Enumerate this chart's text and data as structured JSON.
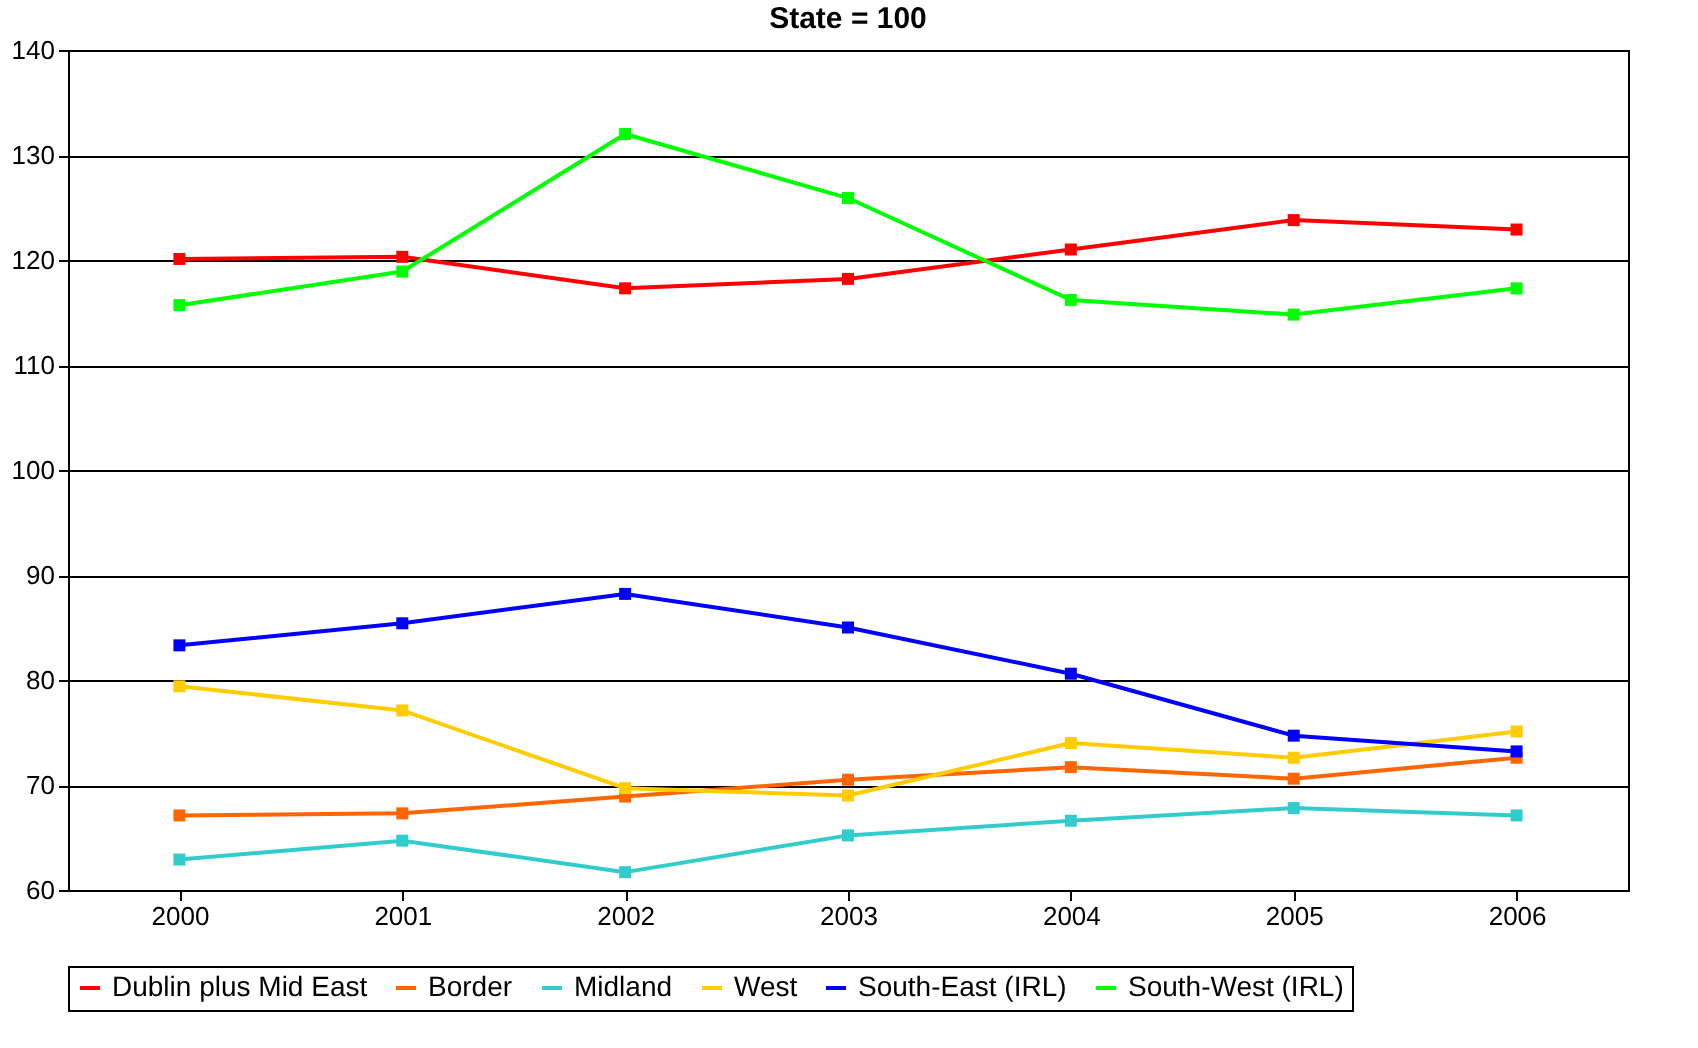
{
  "chart_data": {
    "type": "line",
    "title": "State = 100",
    "categories": [
      "2000",
      "2001",
      "2002",
      "2003",
      "2004",
      "2005",
      "2006"
    ],
    "series": [
      {
        "name": "Dublin plus Mid East",
        "color": "#ff0000",
        "values": [
          120.1,
          120.3,
          117.3,
          118.2,
          121.0,
          123.8,
          122.9
        ]
      },
      {
        "name": "Border",
        "color": "#ff6600",
        "values": [
          67.1,
          67.3,
          68.9,
          70.5,
          71.7,
          70.6,
          72.6
        ]
      },
      {
        "name": "Midland",
        "color": "#33cccc",
        "values": [
          62.9,
          64.7,
          61.7,
          65.2,
          66.6,
          67.8,
          67.1
        ]
      },
      {
        "name": "West",
        "color": "#ffcc00",
        "values": [
          79.4,
          77.1,
          69.7,
          69.0,
          74.0,
          72.6,
          75.1
        ]
      },
      {
        "name": "South-East (IRL)",
        "color": "#0000ff",
        "values": [
          83.3,
          85.4,
          88.2,
          85.0,
          80.6,
          74.7,
          73.2
        ]
      },
      {
        "name": "South-West (IRL)",
        "color": "#00ff00",
        "values": [
          115.7,
          118.9,
          132.0,
          125.9,
          116.2,
          114.8,
          117.3
        ]
      }
    ],
    "ylim": [
      60,
      140
    ],
    "yticks": [
      60,
      70,
      80,
      90,
      100,
      110,
      120,
      130,
      140
    ],
    "grid": "y",
    "legend": "bottom",
    "marker": "square",
    "line_style": "solid"
  }
}
